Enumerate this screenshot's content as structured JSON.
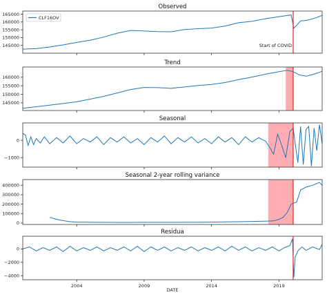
{
  "chart_data": [
    {
      "type": "line",
      "title": "Observed",
      "series": [
        {
          "name": "CLF16OV",
          "color": "#1f77b4",
          "x": [
            2000,
            2001,
            2002,
            2003,
            2004,
            2005,
            2006,
            2007,
            2008,
            2009,
            2010,
            2011,
            2012,
            2013,
            2014,
            2015,
            2016,
            2017,
            2018,
            2019,
            2019.9,
            2020.1,
            2020.3,
            2020.6,
            2021,
            2021.5,
            2022,
            2022.2
          ],
          "values": [
            142600,
            142900,
            144000,
            145300,
            146900,
            148300,
            150300,
            152800,
            154600,
            154200,
            153800,
            153700,
            155200,
            155700,
            156100,
            157400,
            159500,
            160400,
            162100,
            163400,
            164500,
            156000,
            157800,
            160700,
            161000,
            162000,
            163500,
            164300
          ]
        }
      ],
      "ylim": [
        140000,
        167000
      ],
      "yticks": [
        145000,
        150000,
        155000,
        160000,
        165000
      ],
      "yticklabels": [
        "145000",
        "150000",
        "155000",
        "160000",
        "165000"
      ],
      "legend": "top-left",
      "annotation": "Start of COVID",
      "covid_line": 2020.05
    },
    {
      "type": "line",
      "title": "Trend",
      "series": [
        {
          "name": "trend",
          "color": "#1f77b4",
          "x": [
            2000,
            2002,
            2004,
            2006,
            2008,
            2009,
            2010,
            2011,
            2012,
            2013,
            2014,
            2015,
            2016,
            2017,
            2018,
            2019,
            2019.6,
            2020,
            2020.5,
            2021,
            2021.5,
            2022,
            2022.2
          ],
          "values": [
            141800,
            143600,
            145600,
            148800,
            152800,
            154000,
            153900,
            153500,
            154300,
            155200,
            155800,
            156900,
            158600,
            160100,
            161800,
            163300,
            164000,
            163400,
            161400,
            160600,
            161600,
            162900,
            163600
          ]
        }
      ],
      "ylim": [
        140500,
        166000
      ],
      "yticks": [
        145000,
        150000,
        155000,
        160000
      ],
      "yticklabels": [
        "145000",
        "150000",
        "155000",
        "160000"
      ],
      "shade": [
        2019.5,
        2020.05
      ],
      "covid_line": 2020.05
    },
    {
      "type": "line",
      "title": "Seasonal",
      "series": [
        {
          "name": "seasonal",
          "color": "#1f77b4",
          "x": [
            2000,
            2000.2,
            2000.4,
            2000.6,
            2000.8,
            2001,
            2001.3,
            2001.6,
            2002,
            2002.5,
            2003,
            2003.5,
            2004,
            2004.5,
            2005,
            2005.5,
            2006,
            2006.5,
            2007,
            2007.5,
            2008,
            2008.5,
            2009,
            2009.5,
            2010,
            2010.5,
            2011,
            2011.5,
            2012,
            2012.5,
            2013,
            2013.5,
            2014,
            2014.5,
            2015,
            2015.5,
            2016,
            2016.5,
            2017,
            2017.5,
            2018,
            2018.3,
            2018.6,
            2018.9,
            2019.2,
            2019.5,
            2019.8,
            2020.05,
            2020.2,
            2020.4,
            2020.6,
            2020.8,
            2021,
            2021.2,
            2021.4,
            2021.6,
            2021.8,
            2022,
            2022.2
          ],
          "values": [
            400,
            300,
            -300,
            200,
            -250,
            100,
            -150,
            200,
            -200,
            150,
            -150,
            250,
            -200,
            100,
            -100,
            200,
            -250,
            150,
            -100,
            200,
            -150,
            100,
            -250,
            150,
            -100,
            250,
            -200,
            150,
            -100,
            200,
            -150,
            100,
            -200,
            200,
            -100,
            150,
            -250,
            200,
            -100,
            150,
            -50,
            -400,
            -800,
            350,
            -300,
            -1000,
            500,
            700,
            -200,
            -1300,
            800,
            -1400,
            600,
            800,
            -1500,
            700,
            -600,
            900,
            -200
          ]
        }
      ],
      "ylim": [
        -1550,
        1000
      ],
      "yticks": [
        0,
        -1000
      ],
      "yticklabels": [
        "0",
        "−1000"
      ],
      "shade": [
        2018.2,
        2020.05
      ],
      "covid_line": 2020.05
    },
    {
      "type": "line",
      "title": "Seasonal 2-year rolling variance",
      "series": [
        {
          "name": "rolling variance",
          "color": "#1f77b4",
          "x": [
            2002,
            2002.5,
            2003,
            2003.5,
            2004,
            2005,
            2006,
            2007,
            2008,
            2009,
            2010,
            2011,
            2012,
            2013,
            2014,
            2015,
            2016,
            2017,
            2018,
            2018.6,
            2019,
            2019.3,
            2019.6,
            2019.9,
            2020.05,
            2020.3,
            2020.6,
            2021,
            2021.5,
            2022,
            2022.2
          ],
          "values": [
            60000,
            40000,
            25000,
            15000,
            10000,
            9000,
            8000,
            7000,
            7000,
            7500,
            8000,
            8000,
            8500,
            9000,
            10000,
            12000,
            14000,
            17000,
            20000,
            23000,
            40000,
            60000,
            110000,
            200000,
            210000,
            220000,
            350000,
            380000,
            400000,
            430000,
            400000
          ]
        }
      ],
      "ylim": [
        -15000,
        460000
      ],
      "yticks": [
        0,
        100000,
        200000,
        300000,
        400000
      ],
      "yticklabels": [
        "0",
        "100000",
        "200000",
        "300000",
        "400000"
      ],
      "shade": [
        2018.2,
        2020.05
      ],
      "covid_line": 2020.05
    },
    {
      "type": "line",
      "title": "Residua",
      "series": [
        {
          "name": "residual",
          "color": "#1f77b4",
          "x": [
            2000,
            2000.5,
            2001,
            2001.5,
            2002,
            2002.5,
            2003,
            2003.5,
            2004,
            2004.5,
            2005,
            2005.5,
            2006,
            2006.5,
            2007,
            2007.5,
            2008,
            2008.5,
            2009,
            2009.5,
            2010,
            2010.5,
            2011,
            2011.5,
            2012,
            2012.5,
            2013,
            2013.5,
            2014,
            2014.5,
            2015,
            2015.5,
            2016,
            2016.5,
            2017,
            2017.5,
            2018,
            2018.5,
            2019,
            2019.4,
            2019.8,
            2020.0,
            2020.1,
            2020.2,
            2020.4,
            2020.7,
            2021,
            2021.5,
            2022,
            2022.2
          ],
          "values": [
            0,
            300,
            -300,
            200,
            -200,
            300,
            -400,
            400,
            -300,
            200,
            -200,
            300,
            -300,
            200,
            -200,
            300,
            -300,
            400,
            -400,
            300,
            -200,
            300,
            -300,
            200,
            -200,
            300,
            -300,
            200,
            -200,
            300,
            -300,
            400,
            -200,
            300,
            -300,
            200,
            -200,
            300,
            -300,
            200,
            500,
            1500,
            -4200,
            -1200,
            -300,
            300,
            -200,
            300,
            -100,
            700
          ]
        }
      ],
      "ylim": [
        -4600,
        1900
      ],
      "yticks": [
        0,
        -2000,
        -4000
      ],
      "yticklabels": [
        "0",
        "−2000",
        "−4000"
      ],
      "covid_line": 2020.05
    }
  ],
  "xaxis": {
    "xlim": [
      2000.0,
      2022.2
    ],
    "ticks": [
      2004,
      2009,
      2014,
      2019
    ],
    "ticklabels": [
      "2004",
      "2009",
      "2014",
      "2019"
    ],
    "label": "DATE"
  },
  "colors": {
    "line": "#1f77b4",
    "covid_line": "#d62728",
    "shade": "#ff9ea5"
  }
}
